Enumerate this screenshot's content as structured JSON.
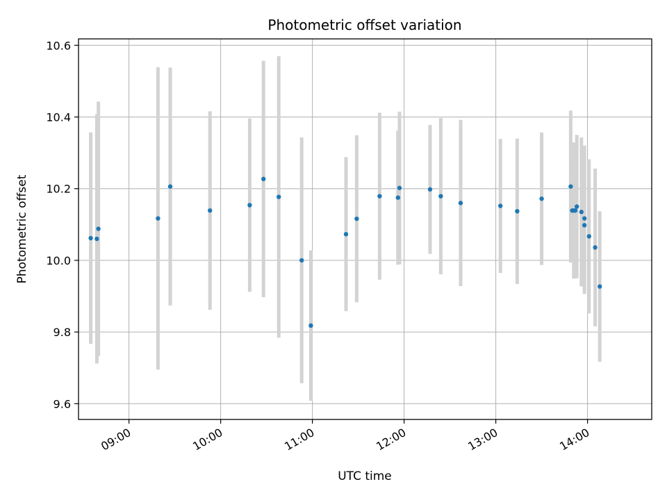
{
  "chart_data": {
    "type": "scatter",
    "title": "Photometric offset variation",
    "xlabel": "UTC time",
    "ylabel": "Photometric offset",
    "x_ticks": [
      "09:00",
      "10:00",
      "11:00",
      "12:00",
      "13:00",
      "14:00"
    ],
    "y_ticks": [
      "9.6",
      "9.8",
      "10.0",
      "10.2",
      "10.4",
      "10.6"
    ],
    "xlim": [
      "08:27",
      "14:42"
    ],
    "ylim": [
      9.556,
      10.618
    ],
    "grid": true,
    "marker_color": "#1f77b4",
    "errorbar_color": "#d3d3d3",
    "points": [
      {
        "t": "08:35",
        "y": 10.062,
        "err": 0.295
      },
      {
        "t": "08:39",
        "y": 10.06,
        "err": 0.348
      },
      {
        "t": "08:40",
        "y": 10.088,
        "err": 0.355
      },
      {
        "t": "09:19",
        "y": 10.117,
        "err": 0.422
      },
      {
        "t": "09:27",
        "y": 10.206,
        "err": 0.332
      },
      {
        "t": "09:53",
        "y": 10.139,
        "err": 0.277
      },
      {
        "t": "10:19",
        "y": 10.154,
        "err": 0.242
      },
      {
        "t": "10:28",
        "y": 10.227,
        "err": 0.33
      },
      {
        "t": "10:38",
        "y": 10.177,
        "err": 0.393
      },
      {
        "t": "10:53",
        "y": 10.0,
        "err": 0.343
      },
      {
        "t": "10:59",
        "y": 9.818,
        "err": 0.21
      },
      {
        "t": "11:22",
        "y": 10.073,
        "err": 0.215
      },
      {
        "t": "11:29",
        "y": 10.116,
        "err": 0.233
      },
      {
        "t": "11:44",
        "y": 10.179,
        "err": 0.233
      },
      {
        "t": "11:56",
        "y": 10.175,
        "err": 0.187
      },
      {
        "t": "11:57",
        "y": 10.202,
        "err": 0.213
      },
      {
        "t": "12:17",
        "y": 10.198,
        "err": 0.18
      },
      {
        "t": "12:24",
        "y": 10.179,
        "err": 0.218
      },
      {
        "t": "12:37",
        "y": 10.16,
        "err": 0.232
      },
      {
        "t": "13:03",
        "y": 10.152,
        "err": 0.187
      },
      {
        "t": "13:14",
        "y": 10.137,
        "err": 0.203
      },
      {
        "t": "13:30",
        "y": 10.172,
        "err": 0.185
      },
      {
        "t": "13:49",
        "y": 10.206,
        "err": 0.212
      },
      {
        "t": "13:50",
        "y": 10.139,
        "err": 0.145
      },
      {
        "t": "13:51",
        "y": 10.139,
        "err": 0.19
      },
      {
        "t": "13:52",
        "y": 10.139,
        "err": 0.175
      },
      {
        "t": "13:53",
        "y": 10.15,
        "err": 0.2
      },
      {
        "t": "13:56",
        "y": 10.135,
        "err": 0.208
      },
      {
        "t": "13:58",
        "y": 10.117,
        "err": 0.203
      },
      {
        "t": "13:58",
        "y": 10.098,
        "err": 0.192
      },
      {
        "t": "14:01",
        "y": 10.067,
        "err": 0.215
      },
      {
        "t": "14:05",
        "y": 10.036,
        "err": 0.22
      },
      {
        "t": "14:08",
        "y": 9.927,
        "err": 0.21
      }
    ]
  }
}
